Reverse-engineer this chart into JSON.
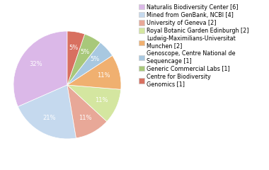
{
  "legend_labels": [
    "Naturalis Biodiversity Center [6]",
    "Mined from GenBank, NCBI [4]",
    "University of Geneva [2]",
    "Royal Botanic Garden Edinburgh [2]",
    "Ludwig-Maximilians-Universitat\nMunchen [2]",
    "Genoscope, Centre National de\nSequencage [1]",
    "Generic Commercial Labs [1]",
    "Centre for Biodiversity\nGenomics [1]"
  ],
  "values": [
    6,
    4,
    2,
    2,
    2,
    1,
    1,
    1
  ],
  "colors": [
    "#dbb8e8",
    "#c5d9ee",
    "#e8a898",
    "#d4e6a0",
    "#f0b070",
    "#a8c8e0",
    "#a8c87a",
    "#d87060"
  ],
  "startangle": 90,
  "font_size": 6.0,
  "legend_fontsize": 5.8
}
